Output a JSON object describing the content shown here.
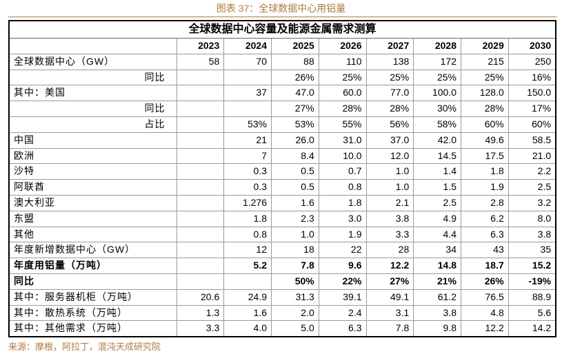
{
  "header": {
    "title": "图表 37：全球数据中心用铝量"
  },
  "table": {
    "title": "全球数据中心容量及能源金属需求测算",
    "columns": [
      "2023",
      "2024",
      "2025",
      "2026",
      "2027",
      "2028",
      "2029",
      "2030"
    ],
    "rows": [
      {
        "label": "全球数据中心（GW）",
        "cells": [
          "58",
          "70",
          "88",
          "110",
          "138",
          "172",
          "215",
          "250"
        ]
      },
      {
        "label": "同比",
        "align": "right",
        "cells": [
          null,
          null,
          "26%",
          "25%",
          "25%",
          "25%",
          "25%",
          "16%"
        ]
      },
      {
        "label": "其中：美国",
        "cells": [
          null,
          "37",
          "47.0",
          "60.0",
          "77.0",
          "100.0",
          "128.0",
          "150.0"
        ]
      },
      {
        "label": "同比",
        "align": "right",
        "cells": [
          null,
          null,
          "27%",
          "28%",
          "28%",
          "30%",
          "28%",
          "17%"
        ]
      },
      {
        "label": "占比",
        "align": "right",
        "cells": [
          null,
          "53%",
          "53%",
          "55%",
          "56%",
          "58%",
          "60%",
          "60%"
        ]
      },
      {
        "label": "中国",
        "cells": [
          null,
          "21",
          "26.0",
          "31.0",
          "37.0",
          "42.0",
          "49.6",
          "58.5"
        ]
      },
      {
        "label": "欧洲",
        "cells": [
          null,
          "7",
          "8.4",
          "10.0",
          "12.0",
          "14.5",
          "17.5",
          "21.0"
        ]
      },
      {
        "label": "沙特",
        "cells": [
          null,
          "0.3",
          "0.5",
          "0.7",
          "1.0",
          "1.4",
          "1.8",
          "2.2"
        ]
      },
      {
        "label": "阿联酋",
        "cells": [
          null,
          "0.3",
          "0.5",
          "0.8",
          "1.0",
          "1.5",
          "1.9",
          "2.5"
        ]
      },
      {
        "label": "澳大利亚",
        "cells": [
          null,
          "1.276",
          "1.6",
          "1.8",
          "2.1",
          "2.5",
          "2.8",
          "3.2"
        ]
      },
      {
        "label": "东盟",
        "cells": [
          null,
          "1.8",
          "2.3",
          "3.0",
          "3.8",
          "4.9",
          "6.2",
          "8.0"
        ]
      },
      {
        "label": "其他",
        "cells": [
          null,
          "0.8",
          "1.0",
          "1.9",
          "3.3",
          "4.4",
          "6.3",
          "3.8"
        ]
      },
      {
        "label": "年度新增数据中心（GW）",
        "cells": [
          null,
          "12",
          "18",
          "22",
          "28",
          "34",
          "43",
          "35"
        ]
      },
      {
        "label": "年度用铝量（万吨）",
        "bold": true,
        "cells": [
          null,
          "5.2",
          "7.8",
          "9.6",
          "12.2",
          "14.8",
          "18.7",
          "15.2"
        ]
      },
      {
        "label": "同比",
        "bold": true,
        "cells": [
          null,
          null,
          "50%",
          "22%",
          "27%",
          "21%",
          "26%",
          "-19%"
        ]
      },
      {
        "label": "其中：服务器机柜（万吨）",
        "cells": [
          "20.6",
          "24.9",
          "31.3",
          "39.1",
          "49.1",
          "61.2",
          "76.5",
          "88.9"
        ]
      },
      {
        "label": "其中：散热系统（万吨）",
        "cells": [
          "1.3",
          "1.6",
          "2.0",
          "2.4",
          "3.1",
          "3.8",
          "4.8",
          "5.6"
        ]
      },
      {
        "label": "其中：其他需求（万吨）",
        "cells": [
          "3.3",
          "4.0",
          "5.0",
          "6.3",
          "7.8",
          "9.8",
          "12.2",
          "14.2"
        ]
      }
    ]
  },
  "footer": {
    "source": "来源：摩根，阿拉丁，混沌天成研究院"
  }
}
